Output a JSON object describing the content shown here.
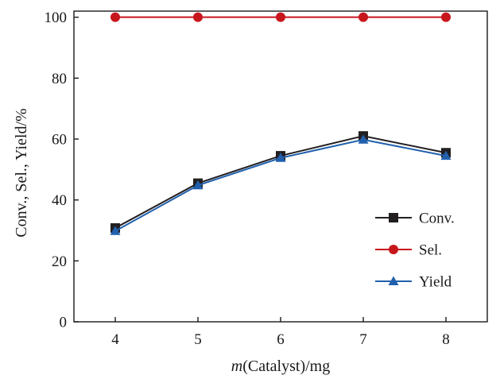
{
  "chart_data": {
    "type": "line",
    "x": [
      4,
      5,
      6,
      7,
      8
    ],
    "xlabel_italic": "m",
    "xlabel_rest": "(Catalyst)/mg",
    "ylabel": "Conv., Sel., Yield/%",
    "ylim": [
      0,
      102
    ],
    "yticks": [
      0,
      20,
      40,
      60,
      80,
      100
    ],
    "xticks": [
      4,
      5,
      6,
      7,
      8
    ],
    "xlim": [
      3.5,
      8.5
    ],
    "grid": false,
    "legend_position": "lower-right",
    "series": [
      {
        "name": "Conv.",
        "values": [
          30.8,
          45.5,
          54.5,
          61.0,
          55.5
        ],
        "color": "#231f20",
        "marker": "square"
      },
      {
        "name": "Sel.",
        "values": [
          100,
          100,
          100,
          100,
          100
        ],
        "color": "#c8161d",
        "marker": "circle"
      },
      {
        "name": "Yield",
        "values": [
          29.8,
          44.8,
          53.8,
          59.8,
          54.5
        ],
        "color": "#2160ad",
        "marker": "triangle"
      }
    ]
  }
}
